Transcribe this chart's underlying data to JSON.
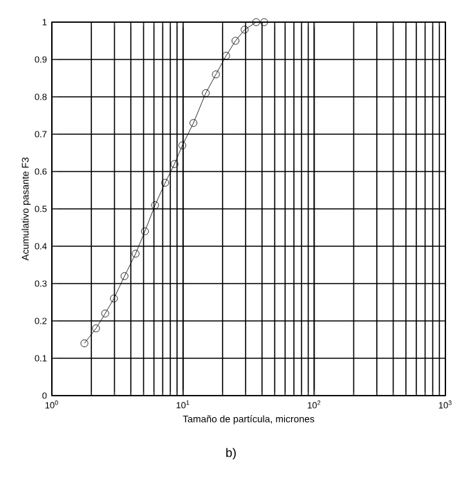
{
  "chart_data": {
    "type": "line",
    "xlabel": "Tamaño de partícula, micrones",
    "ylabel": "Acumulativo pasante F3",
    "annotations": [
      "b)"
    ],
    "log": "x",
    "grid": true,
    "marker": "circle",
    "line_style": "solid",
    "color": "#000000",
    "xlim": [
      1,
      1000
    ],
    "ylim": [
      0,
      1
    ],
    "xticks": [
      {
        "value": 1,
        "label": "10$^{0}$"
      },
      {
        "value": 10,
        "label": "10$^{1}$"
      },
      {
        "value": 100,
        "label": "10$^{2}$"
      },
      {
        "value": 1000,
        "label": "10$^{3}$"
      }
    ],
    "yticks": [
      0,
      0.1,
      0.2,
      0.3,
      0.4,
      0.5,
      0.6,
      0.7,
      0.8,
      0.9,
      1
    ],
    "x": [
      1.77,
      2.17,
      2.55,
      2.97,
      3.58,
      4.35,
      5.12,
      6.12,
      7.31,
      8.6,
      9.88,
      12.0,
      14.9,
      17.8,
      21.3,
      25.1,
      29.5,
      36.1,
      41.5
    ],
    "values": [
      0.14,
      0.18,
      0.22,
      0.26,
      0.32,
      0.38,
      0.44,
      0.51,
      0.57,
      0.62,
      0.67,
      0.73,
      0.81,
      0.86,
      0.91,
      0.95,
      0.98,
      1.0,
      1.0
    ]
  }
}
